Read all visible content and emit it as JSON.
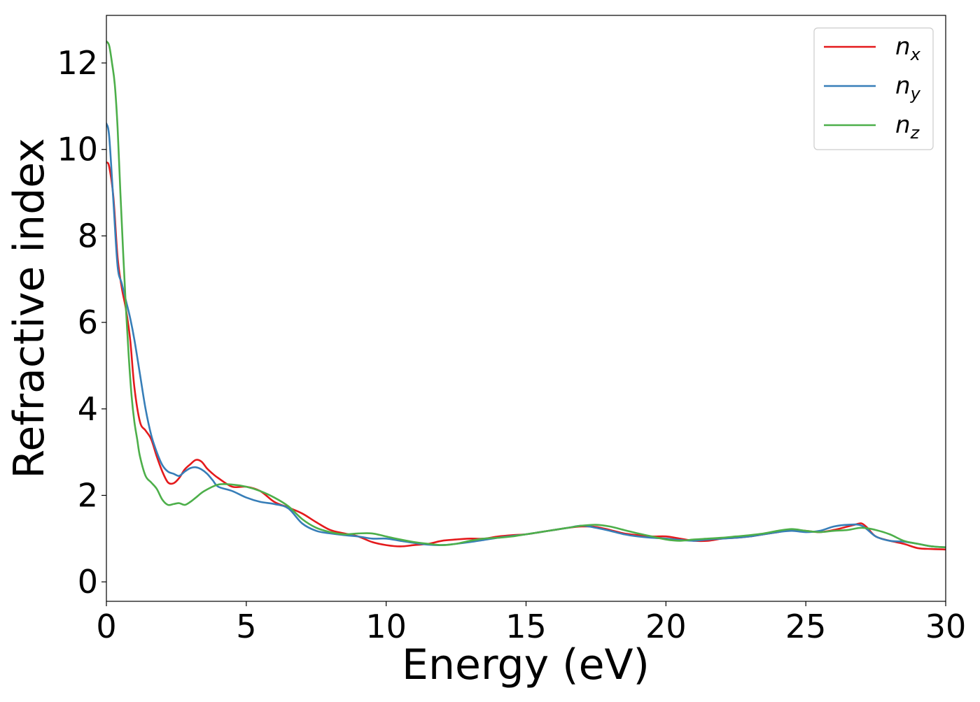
{
  "chart_data": {
    "type": "line",
    "xlabel": "Energy (eV)",
    "ylabel": "Refractive index",
    "xlim": [
      0,
      30
    ],
    "ylim": [
      -0.45,
      13.1
    ],
    "xticks": [
      0,
      5,
      10,
      15,
      20,
      25,
      30
    ],
    "yticks": [
      0,
      2,
      4,
      6,
      8,
      10,
      12
    ],
    "grid": false,
    "legend_position": "top-right",
    "series": [
      {
        "name": "n",
        "subscript": "x",
        "color": "#e41a1c",
        "x": [
          0,
          0.1,
          0.25,
          0.4,
          0.55,
          0.7,
          0.85,
          1.0,
          1.2,
          1.4,
          1.6,
          1.8,
          2.0,
          2.2,
          2.4,
          2.6,
          2.8,
          3.0,
          3.2,
          3.4,
          3.6,
          3.8,
          4.0,
          4.5,
          5.0,
          5.5,
          6.0,
          6.5,
          7.0,
          7.5,
          8.0,
          8.5,
          9.0,
          9.5,
          10.0,
          10.5,
          11.0,
          11.5,
          12.0,
          12.5,
          13.0,
          13.5,
          14.0,
          14.5,
          15.0,
          15.5,
          16.0,
          16.5,
          17.0,
          17.5,
          18.0,
          18.5,
          19.0,
          19.5,
          20.0,
          20.5,
          21.0,
          21.5,
          22.0,
          22.5,
          23.0,
          23.5,
          24.0,
          24.5,
          25.0,
          25.5,
          26.0,
          26.5,
          26.8,
          27.0,
          27.2,
          27.5,
          28.0,
          28.5,
          29.0,
          29.5,
          30.0
        ],
        "y": [
          9.7,
          9.6,
          8.9,
          7.5,
          6.8,
          6.3,
          5.6,
          4.5,
          3.7,
          3.5,
          3.3,
          2.9,
          2.55,
          2.3,
          2.28,
          2.4,
          2.6,
          2.72,
          2.82,
          2.78,
          2.62,
          2.5,
          2.4,
          2.2,
          2.2,
          2.1,
          1.85,
          1.72,
          1.58,
          1.38,
          1.2,
          1.12,
          1.05,
          0.92,
          0.85,
          0.82,
          0.85,
          0.88,
          0.95,
          0.98,
          1.0,
          1.0,
          1.05,
          1.08,
          1.1,
          1.15,
          1.2,
          1.25,
          1.28,
          1.27,
          1.2,
          1.12,
          1.08,
          1.05,
          1.05,
          1.0,
          0.95,
          0.95,
          1.0,
          1.02,
          1.05,
          1.1,
          1.15,
          1.2,
          1.18,
          1.15,
          1.2,
          1.28,
          1.33,
          1.35,
          1.25,
          1.05,
          0.95,
          0.88,
          0.78,
          0.76,
          0.75
        ]
      },
      {
        "name": "n",
        "subscript": "y",
        "color": "#377eb8",
        "x": [
          0,
          0.1,
          0.25,
          0.4,
          0.55,
          0.7,
          0.85,
          1.0,
          1.2,
          1.4,
          1.6,
          1.8,
          2.0,
          2.2,
          2.4,
          2.6,
          2.8,
          3.0,
          3.2,
          3.4,
          3.6,
          3.8,
          4.0,
          4.5,
          5.0,
          5.5,
          6.0,
          6.5,
          7.0,
          7.5,
          8.0,
          8.5,
          9.0,
          9.5,
          10.0,
          10.5,
          11.0,
          11.5,
          12.0,
          12.5,
          13.0,
          13.5,
          14.0,
          14.5,
          15.0,
          15.5,
          16.0,
          16.5,
          17.0,
          17.5,
          18.0,
          18.5,
          19.0,
          19.5,
          20.0,
          20.5,
          21.0,
          21.5,
          22.0,
          22.5,
          23.0,
          23.5,
          24.0,
          24.5,
          25.0,
          25.5,
          26.0,
          26.5,
          27.0,
          27.5,
          28.0,
          28.5,
          29.0,
          29.5,
          30.0
        ],
        "y": [
          10.6,
          10.3,
          8.8,
          7.3,
          6.9,
          6.5,
          6.1,
          5.6,
          4.8,
          4.0,
          3.4,
          3.0,
          2.7,
          2.55,
          2.5,
          2.45,
          2.55,
          2.63,
          2.65,
          2.6,
          2.5,
          2.35,
          2.2,
          2.1,
          1.95,
          1.85,
          1.8,
          1.7,
          1.35,
          1.18,
          1.12,
          1.08,
          1.05,
          1.0,
          1.0,
          0.95,
          0.9,
          0.86,
          0.85,
          0.88,
          0.92,
          0.97,
          1.02,
          1.06,
          1.1,
          1.15,
          1.2,
          1.25,
          1.3,
          1.25,
          1.18,
          1.1,
          1.05,
          1.02,
          1.0,
          0.97,
          0.95,
          0.98,
          1.0,
          1.02,
          1.05,
          1.1,
          1.15,
          1.18,
          1.15,
          1.18,
          1.28,
          1.32,
          1.3,
          1.05,
          0.95,
          0.93,
          0.88,
          0.82,
          0.8
        ]
      },
      {
        "name": "n",
        "subscript": "z",
        "color": "#4daf4a",
        "x": [
          0,
          0.1,
          0.2,
          0.3,
          0.4,
          0.5,
          0.6,
          0.7,
          0.8,
          0.9,
          1.0,
          1.1,
          1.2,
          1.4,
          1.6,
          1.8,
          2.0,
          2.2,
          2.4,
          2.6,
          2.8,
          3.0,
          3.2,
          3.5,
          4.0,
          4.5,
          5.0,
          5.5,
          6.0,
          6.5,
          7.0,
          7.5,
          8.0,
          8.5,
          9.0,
          9.5,
          10.0,
          10.5,
          11.0,
          11.5,
          12.0,
          12.5,
          13.0,
          13.5,
          14.0,
          14.5,
          15.0,
          15.5,
          16.0,
          16.5,
          17.0,
          17.5,
          18.0,
          18.5,
          19.0,
          19.5,
          20.0,
          20.5,
          21.0,
          21.5,
          22.0,
          22.5,
          23.0,
          23.5,
          24.0,
          24.5,
          25.0,
          25.5,
          26.0,
          26.5,
          27.0,
          27.5,
          28.0,
          28.5,
          29.0,
          29.5,
          30.0
        ],
        "y": [
          12.5,
          12.4,
          12.0,
          11.5,
          10.5,
          9.0,
          7.6,
          6.3,
          5.2,
          4.3,
          3.7,
          3.3,
          2.9,
          2.45,
          2.3,
          2.15,
          1.9,
          1.78,
          1.8,
          1.82,
          1.78,
          1.85,
          1.95,
          2.1,
          2.25,
          2.25,
          2.2,
          2.1,
          1.95,
          1.75,
          1.45,
          1.25,
          1.15,
          1.1,
          1.12,
          1.12,
          1.05,
          0.98,
          0.92,
          0.88,
          0.85,
          0.88,
          0.95,
          1.0,
          1.02,
          1.05,
          1.1,
          1.15,
          1.2,
          1.25,
          1.3,
          1.32,
          1.28,
          1.2,
          1.12,
          1.05,
          0.98,
          0.95,
          0.98,
          1.0,
          1.02,
          1.05,
          1.08,
          1.12,
          1.18,
          1.22,
          1.18,
          1.15,
          1.18,
          1.2,
          1.25,
          1.2,
          1.1,
          0.95,
          0.88,
          0.82,
          0.8
        ]
      }
    ]
  }
}
